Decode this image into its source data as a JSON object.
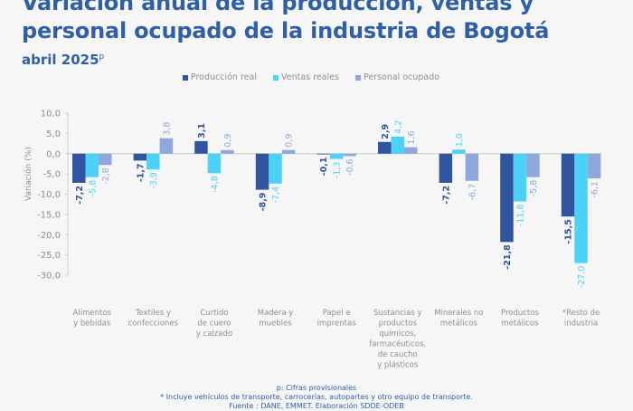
{
  "header": {
    "title_line1": "Variación anual de la producción, ventas y",
    "title_line2": "personal ocupado de la industria de Bogotá",
    "subtitle": "abril 2025",
    "subtitle_sup": "p"
  },
  "footer": {
    "note1": "p: Cifras provisionales",
    "note2": "* Incluye vehículos de transporte, carrocerías, autopartes y otro equipo de transporte.",
    "note3": "Fuente : DANE, EMMET. Elaboración SDDE-ODEB"
  },
  "colors": {
    "produccion": "#2f55a0",
    "ventas": "#4dd2f7",
    "personal": "#8ea8db",
    "axis_text": "#8c8f99",
    "title": "#2f5fa5"
  },
  "chart_data": {
    "type": "bar",
    "title": "Variación anual de la producción, ventas y personal ocupado de la industria de Bogotá",
    "subtitle": "abril 2025p",
    "xlabel": "",
    "ylabel": "Variación (%)",
    "ylim": [
      -30,
      10
    ],
    "yticks": [
      10,
      5,
      0,
      -5,
      -10,
      -15,
      -20,
      -25,
      -30
    ],
    "ytick_labels": [
      "10,0",
      "5,0",
      "0,0",
      "-5,0",
      "-10,0",
      "-15,0",
      "-20,0",
      "-25,0",
      "-30,0"
    ],
    "grid": false,
    "legend": "top-center",
    "categories": [
      [
        "Alimentos",
        "y bebidas"
      ],
      [
        "Textiles y",
        "confecciones"
      ],
      [
        "Curtido",
        "de cuero",
        "y calzado"
      ],
      [
        "Madera y",
        "muebles"
      ],
      [
        "Papel e",
        "imprentas"
      ],
      [
        "Sustancias y",
        "productos",
        "químicos,",
        "farmacéuticos,",
        "de caucho",
        "y plásticos"
      ],
      [
        "Minerales no",
        "metálicos"
      ],
      [
        "Productos",
        "metálicos"
      ],
      [
        "*Resto de",
        "industria"
      ]
    ],
    "series": [
      {
        "name": "Producción real",
        "values": [
          -7.2,
          -1.7,
          3.1,
          -8.9,
          -0.1,
          2.9,
          -7.2,
          -21.8,
          -15.5
        ],
        "labels": [
          "-7,2",
          "-1,7",
          "3,1",
          "-8,9",
          "-0,1",
          "2,9",
          "-7,2",
          "-21,8",
          "-15,5"
        ]
      },
      {
        "name": "Ventas reales",
        "values": [
          -5.8,
          -3.9,
          -4.8,
          -7.4,
          -1.3,
          4.2,
          1.0,
          -11.8,
          -27.0
        ],
        "labels": [
          "-5,8",
          "-3,9",
          "-4,8",
          "-7,4",
          "-1,3",
          "4,2",
          "1,0",
          "-11,8",
          "-27,0"
        ]
      },
      {
        "name": "Personal ocupado",
        "values": [
          -2.8,
          3.8,
          0.9,
          0.9,
          -0.6,
          1.6,
          -6.7,
          -5.8,
          -6.1
        ],
        "labels": [
          "-2,8",
          "3,8",
          "0,9",
          "0,9",
          "-0,6",
          "1,6",
          "-6,7",
          "-5,8",
          "-6,1"
        ]
      }
    ]
  }
}
